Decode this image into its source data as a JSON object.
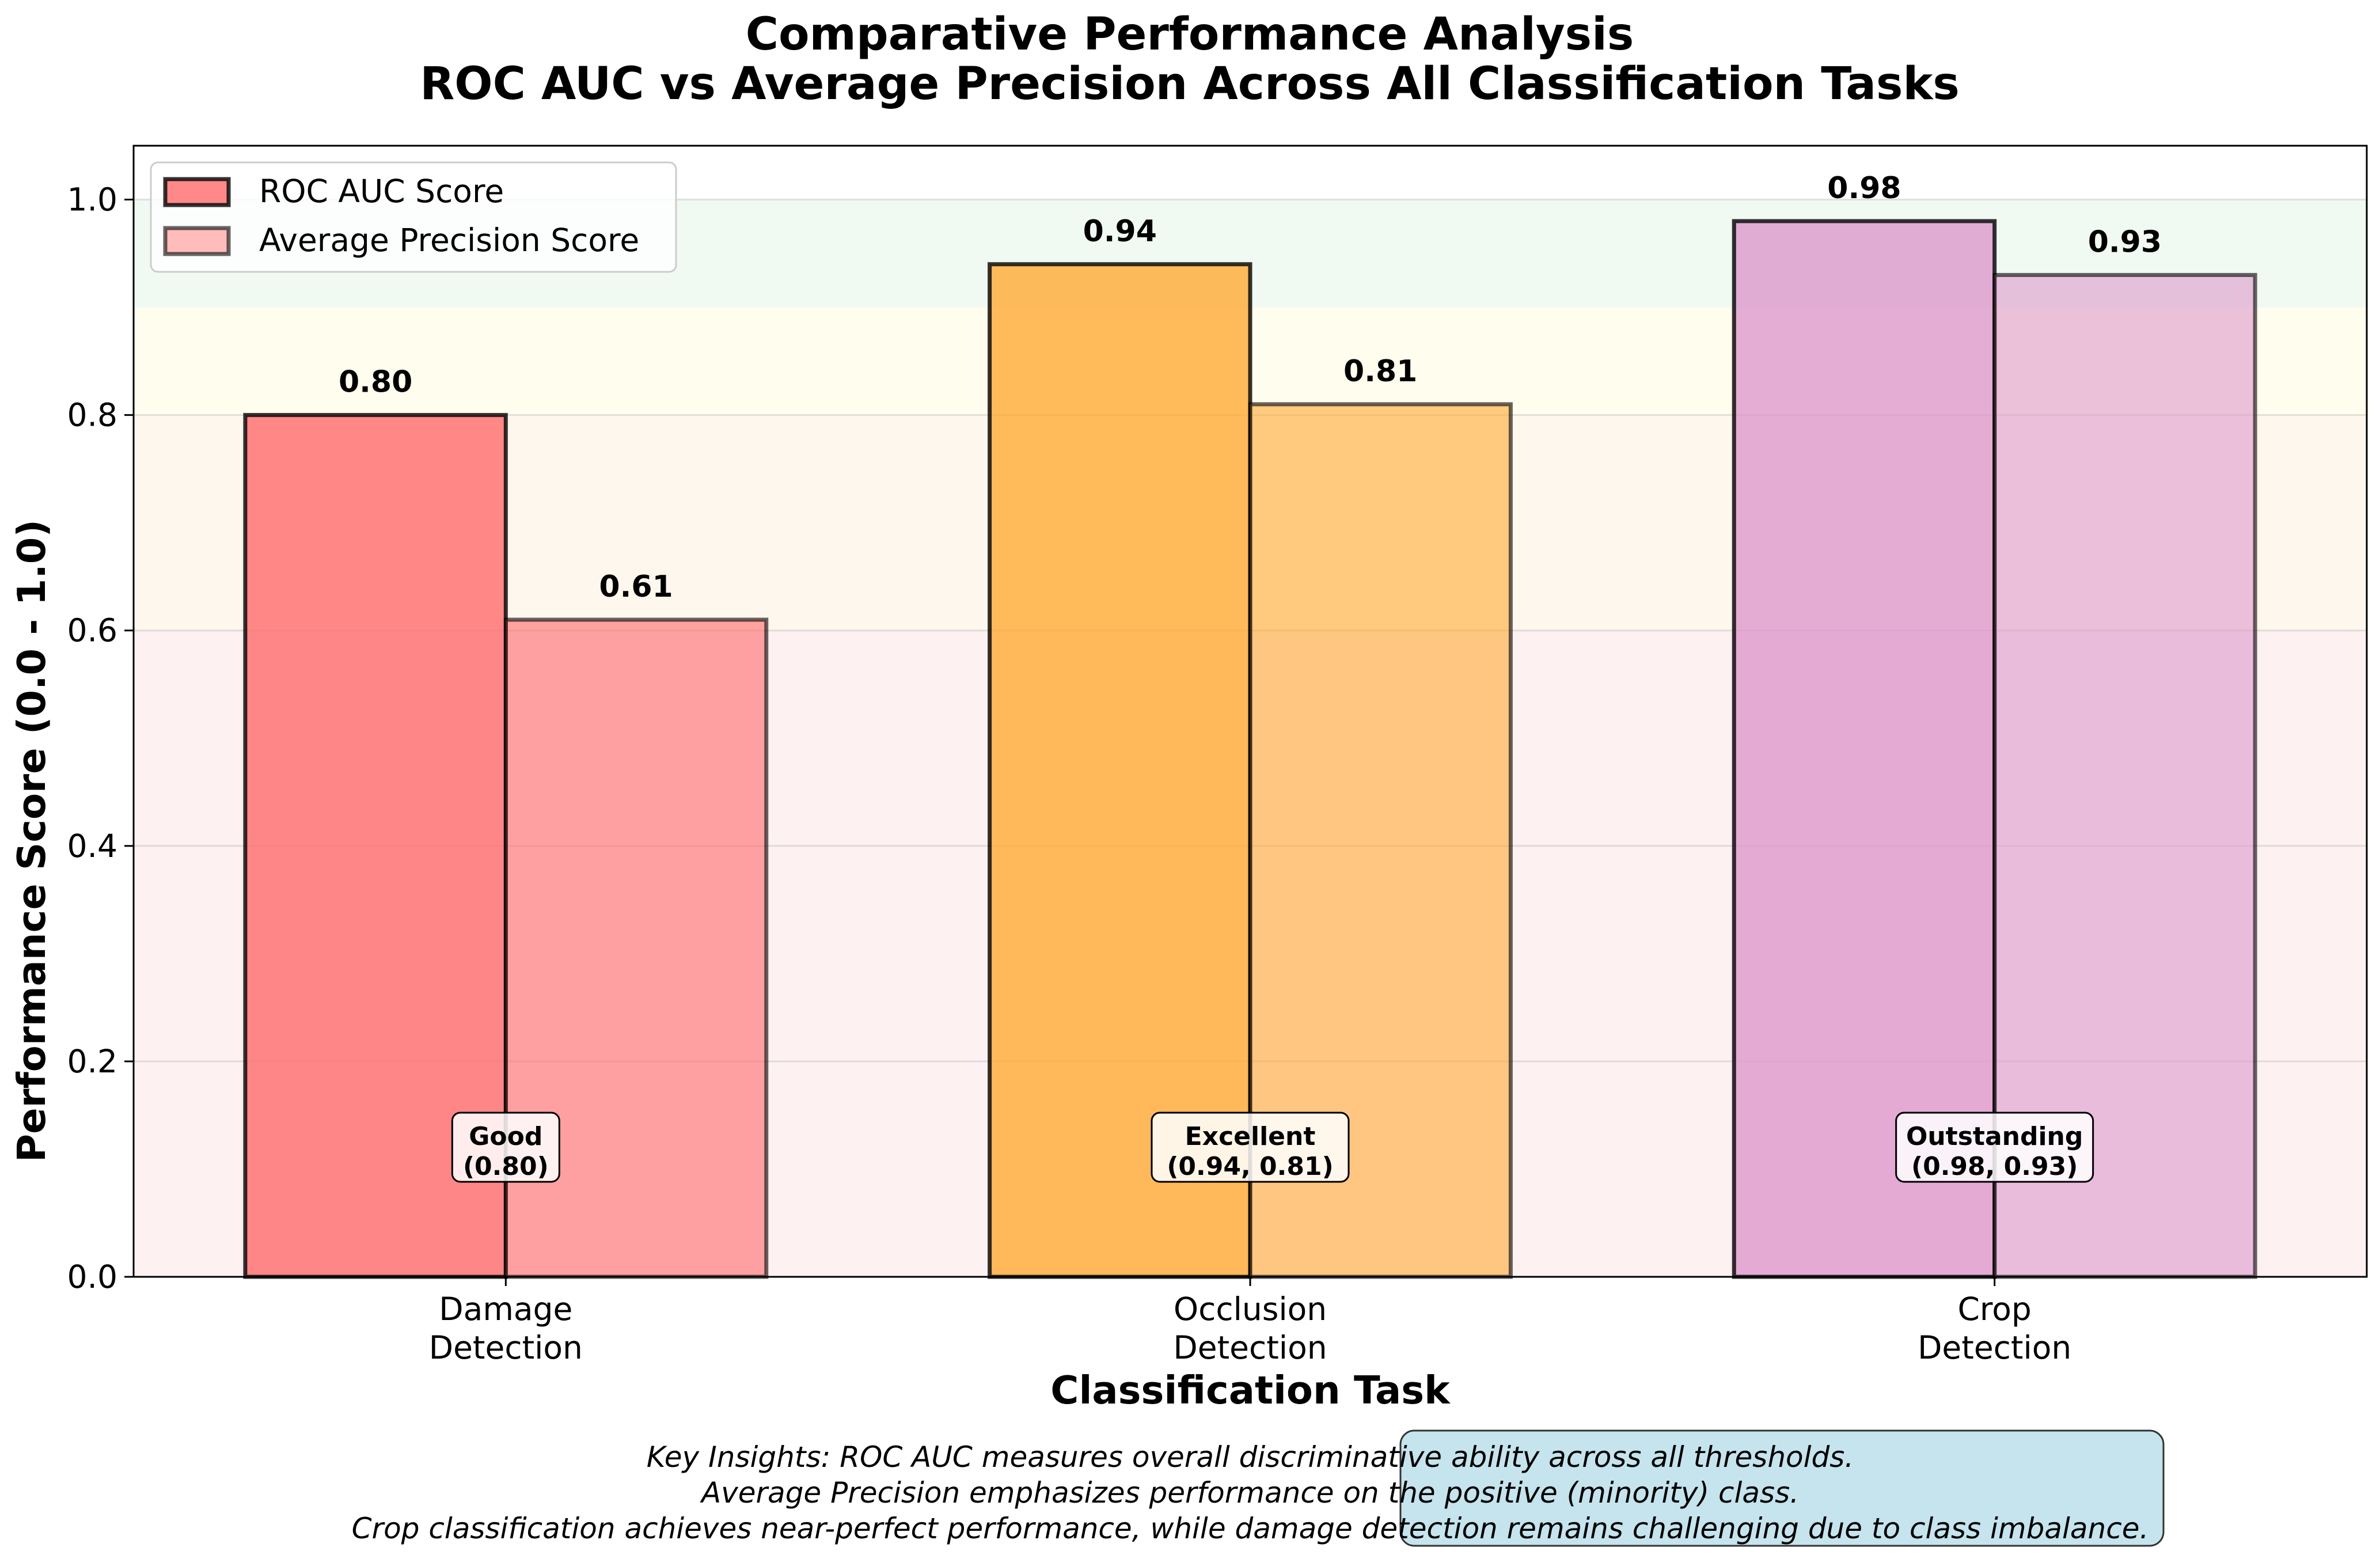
{
  "chart_data": {
    "type": "bar",
    "title": "Comparative Performance Analysis",
    "subtitle": "ROC AUC vs Average Precision Across All Classification Tasks",
    "xlabel": "Classification Task",
    "ylabel": "Performance Score (0.0 - 1.0)",
    "ylim": [
      0,
      1.05
    ],
    "yticks": [
      "0.0",
      "0.2",
      "0.4",
      "0.6",
      "0.8",
      "1.0"
    ],
    "grid": "y",
    "legend_position": "top-left",
    "categories": [
      [
        "Damage",
        "Detection"
      ],
      [
        "Occlusion",
        "Detection"
      ],
      [
        "Crop",
        "Detection"
      ]
    ],
    "series": [
      {
        "name": "ROC AUC Score",
        "values": [
          0.8,
          0.94,
          0.98
        ],
        "labels": [
          "0.80",
          "0.94",
          "0.98"
        ]
      },
      {
        "name": "Average Precision Score",
        "values": [
          0.61,
          0.81,
          0.93
        ],
        "labels": [
          "0.61",
          "0.81",
          "0.93"
        ]
      }
    ],
    "bar_colors": [
      "#ff6b6b",
      "#ffaa33",
      "#dd99cc"
    ],
    "legend_colors": [
      "#ff6b6b",
      "#ff8f8f"
    ],
    "performance_bands": [
      {
        "from": 0.0,
        "to": 0.6,
        "color": "#f8d7da"
      },
      {
        "from": 0.6,
        "to": 0.8,
        "color": "#fde8cd"
      },
      {
        "from": 0.8,
        "to": 0.9,
        "color": "#fffacc"
      },
      {
        "from": 0.9,
        "to": 1.0,
        "color": "#d4edda"
      }
    ],
    "annotations": [
      [
        "Good",
        "(0.80)"
      ],
      [
        "Excellent",
        "(0.94, 0.81)"
      ],
      [
        "Outstanding",
        "(0.98, 0.93)"
      ]
    ],
    "insights": [
      "Key Insights: ROC AUC measures overall discriminative ability across all thresholds.",
      "Average Precision emphasizes performance on the positive (minority) class.",
      "Crop classification achieves near-perfect performance, while damage detection remains challenging due to class imbalance."
    ]
  }
}
